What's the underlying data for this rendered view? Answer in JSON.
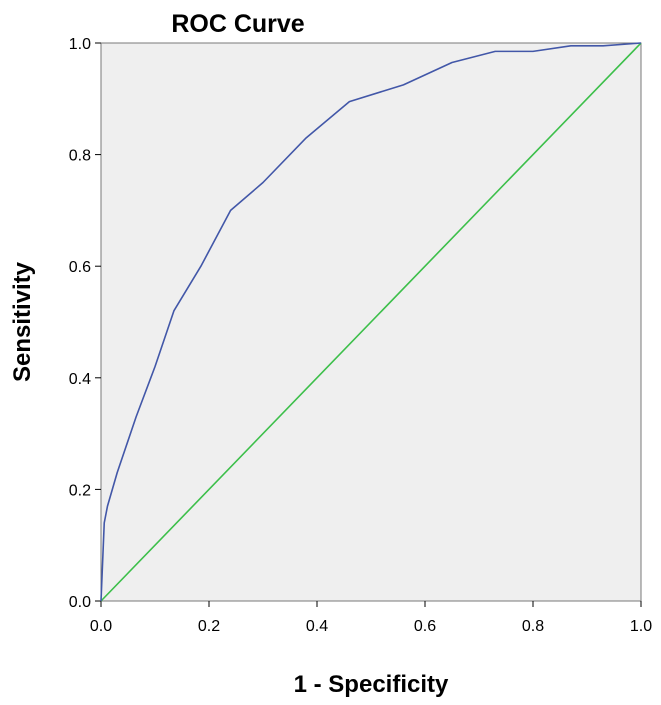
{
  "chart_data": {
    "type": "line",
    "title": "ROC Curve",
    "xlabel": "1 - Specificity",
    "ylabel": "Sensitivity",
    "xlim": [
      0.0,
      1.0
    ],
    "ylim": [
      0.0,
      1.0
    ],
    "x_ticks": [
      "0.0",
      "0.2",
      "0.4",
      "0.6",
      "0.8",
      "1.0"
    ],
    "y_ticks": [
      "0.0",
      "0.2",
      "0.4",
      "0.6",
      "0.8",
      "1.0"
    ],
    "grid": false,
    "legend": "none",
    "plot_background": "#efefef",
    "series": [
      {
        "color": "#4257a8",
        "x": [
          0.0,
          0.006,
          0.012,
          0.03,
          0.065,
          0.1,
          0.135,
          0.185,
          0.24,
          0.3,
          0.38,
          0.46,
          0.56,
          0.65,
          0.73,
          0.8,
          0.87,
          0.93,
          1.0
        ],
        "y": [
          0.0,
          0.14,
          0.17,
          0.23,
          0.33,
          0.42,
          0.52,
          0.6,
          0.7,
          0.75,
          0.83,
          0.895,
          0.925,
          0.965,
          0.985,
          0.985,
          0.995,
          0.995,
          1.0
        ]
      },
      {
        "color": "#3cbf4a",
        "x": [
          0.0,
          1.0
        ],
        "y": [
          0.0,
          1.0
        ]
      }
    ]
  }
}
